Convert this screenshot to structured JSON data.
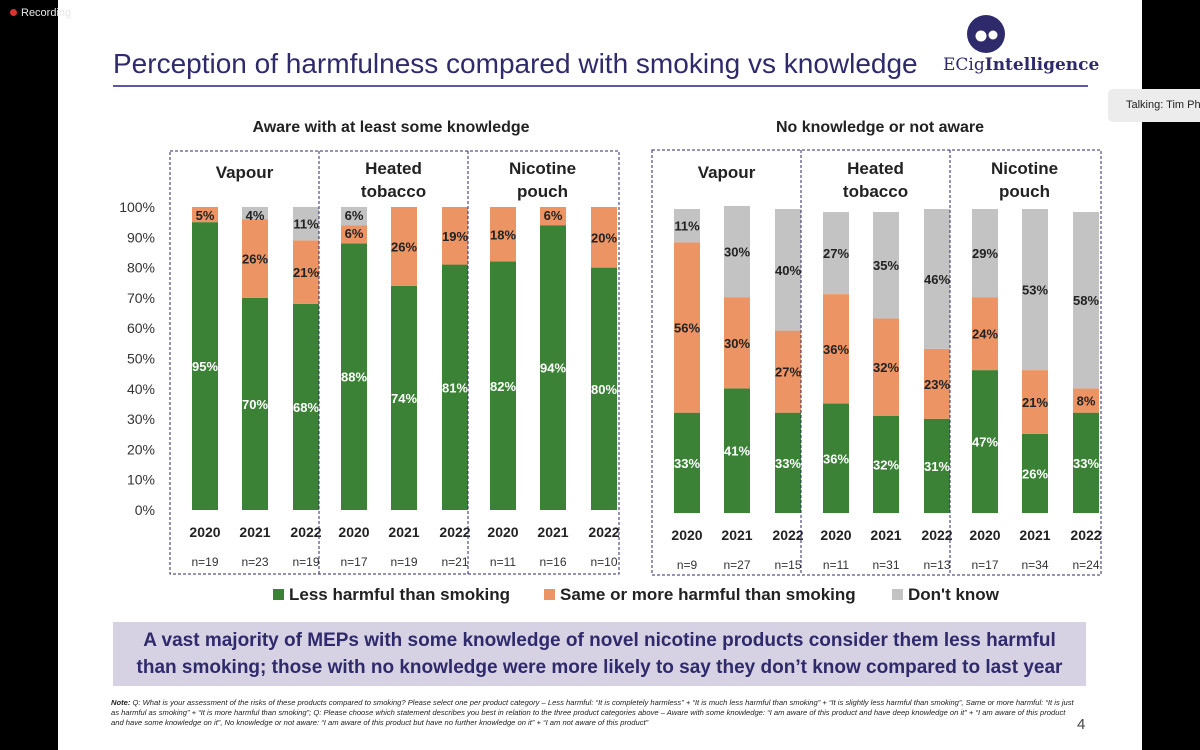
{
  "recording": {
    "label": "Recording"
  },
  "talking": {
    "label": "Talking: Tim Ph"
  },
  "slide": {
    "title": "Perception of harmfulness compared with smoking vs knowledge",
    "logo": {
      "text_normal": "ECig",
      "text_bold": "Intelligence"
    },
    "summary": "A vast majority of MEPs with some knowledge of novel nicotine products consider them less harmful than smoking; those with no knowledge were more likely to say they don’t know compared to last year",
    "note_label": "Note:",
    "note_text": " Q: What is your assessment of the risks of these products compared to smoking? Please select one per product category – Less harmful: “It is completely harmless” + “It is much less harmful than smoking” + “It is slightly less harmful than smoking”, Same or more harmful: “It is just as harmful as smoking” + “It is more harmful than smoking”; Q: Please choose which statement describes you best in relation to the three product categories above – Aware with some knowledge: “I am aware of this product and have deep knowledge on it” + “I am aware of this product and have some knowledge on it”, No knowledge or not aware: “I am aware of this product but have no further knowledge on it” + “I am not aware of this product”",
    "page_number": "4"
  },
  "chart_data": {
    "type": "bar",
    "stacked": true,
    "y_ticks": [
      "0%",
      "10%",
      "20%",
      "30%",
      "40%",
      "50%",
      "60%",
      "70%",
      "80%",
      "90%",
      "100%"
    ],
    "ylim": [
      0,
      100
    ],
    "grid": false,
    "legend_position": "bottom",
    "colors": {
      "less": "#3b8136",
      "same": "#ec9464",
      "dk": "#c3c3c3",
      "title": "#2e2a6b"
    },
    "legend": [
      {
        "key": "less",
        "label": "Less harmful than smoking"
      },
      {
        "key": "same",
        "label": "Same or more harmful than smoking"
      },
      {
        "key": "dk",
        "label": "Don't know"
      }
    ],
    "groups": [
      {
        "title": "Aware with at least some knowledge",
        "products": [
          {
            "name": [
              "Vapour"
            ],
            "bars": [
              {
                "year": "2020",
                "n": "n=19",
                "less": 95,
                "same": 5,
                "dk": 0,
                "labels": [
                  "95%",
                  "5%",
                  ""
                ]
              },
              {
                "year": "2021",
                "n": "n=23",
                "less": 70,
                "same": 26,
                "dk": 4,
                "labels": [
                  "70%",
                  "26%",
                  "4%"
                ]
              },
              {
                "year": "2022",
                "n": "n=19",
                "less": 68,
                "same": 21,
                "dk": 11,
                "labels": [
                  "68%",
                  "21%",
                  "11%"
                ]
              }
            ]
          },
          {
            "name": [
              "Heated",
              "tobacco"
            ],
            "bars": [
              {
                "year": "2020",
                "n": "n=17",
                "less": 88,
                "same": 6,
                "dk": 6,
                "labels": [
                  "88%",
                  "6%",
                  "6%"
                ]
              },
              {
                "year": "2021",
                "n": "n=19",
                "less": 74,
                "same": 26,
                "dk": 0,
                "labels": [
                  "74%",
                  "26%",
                  ""
                ]
              },
              {
                "year": "2022",
                "n": "n=21",
                "less": 81,
                "same": 19,
                "dk": 0,
                "labels": [
                  "81%",
                  "19%",
                  ""
                ]
              }
            ]
          },
          {
            "name": [
              "Nicotine",
              "pouch"
            ],
            "bars": [
              {
                "year": "2020",
                "n": "n=11",
                "less": 82,
                "same": 18,
                "dk": 0,
                "labels": [
                  "82%",
                  "18%",
                  ""
                ]
              },
              {
                "year": "2021",
                "n": "n=16",
                "less": 94,
                "same": 6,
                "dk": 0,
                "labels": [
                  "94%",
                  "6%",
                  ""
                ]
              },
              {
                "year": "2022",
                "n": "n=10",
                "less": 80,
                "same": 20,
                "dk": 0,
                "labels": [
                  "80%",
                  "20%",
                  ""
                ]
              }
            ]
          }
        ]
      },
      {
        "title": "No knowledge or not aware",
        "products": [
          {
            "name": [
              "Vapour"
            ],
            "bars": [
              {
                "year": "2020",
                "n": "n=9",
                "less": 33,
                "same": 56,
                "dk": 11,
                "labels": [
                  "33%",
                  "56%",
                  "11%"
                ]
              },
              {
                "year": "2021",
                "n": "n=27",
                "less": 41,
                "same": 30,
                "dk": 30,
                "labels": [
                  "41%",
                  "30%",
                  "30%"
                ]
              },
              {
                "year": "2022",
                "n": "n=15",
                "less": 33,
                "same": 27,
                "dk": 40,
                "labels": [
                  "33%",
                  "27%",
                  "40%"
                ]
              }
            ]
          },
          {
            "name": [
              "Heated",
              "tobacco"
            ],
            "bars": [
              {
                "year": "2020",
                "n": "n=11",
                "less": 36,
                "same": 36,
                "dk": 27,
                "labels": [
                  "36%",
                  "36%",
                  "27%"
                ]
              },
              {
                "year": "2021",
                "n": "n=31",
                "less": 32,
                "same": 32,
                "dk": 35,
                "labels": [
                  "32%",
                  "32%",
                  "35%"
                ]
              },
              {
                "year": "2022",
                "n": "n=13",
                "less": 31,
                "same": 23,
                "dk": 46,
                "labels": [
                  "31%",
                  "23%",
                  "46%"
                ]
              }
            ]
          },
          {
            "name": [
              "Nicotine",
              "pouch"
            ],
            "bars": [
              {
                "year": "2020",
                "n": "n=17",
                "less": 47,
                "same": 24,
                "dk": 29,
                "labels": [
                  "47%",
                  "24%",
                  "29%"
                ]
              },
              {
                "year": "2021",
                "n": "n=34",
                "less": 26,
                "same": 21,
                "dk": 53,
                "labels": [
                  "26%",
                  "21%",
                  "53%"
                ]
              },
              {
                "year": "2022",
                "n": "n=24",
                "less": 33,
                "same": 8,
                "dk": 58,
                "labels": [
                  "33%",
                  "8%",
                  "58%"
                ]
              }
            ]
          }
        ]
      }
    ]
  }
}
